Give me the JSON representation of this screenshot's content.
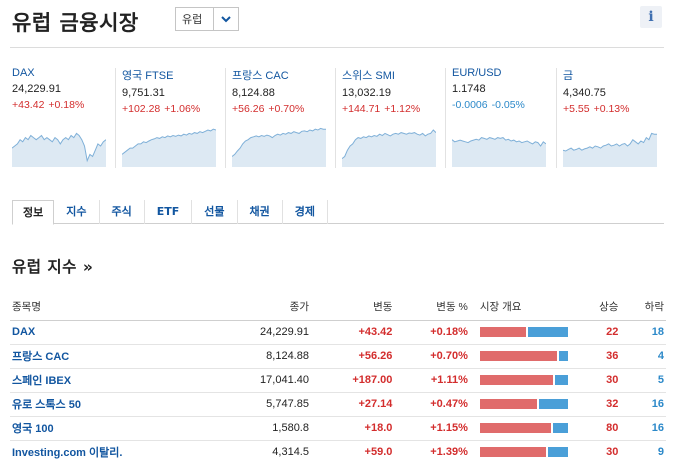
{
  "header": {
    "title": "유럽 금융시장",
    "region_value": "유럽",
    "info_label": "i"
  },
  "quotes": [
    {
      "name": "DAX",
      "value": "24,229.91",
      "change": "+43.42",
      "pct": "+0.18%",
      "direction": "pos"
    },
    {
      "name": "영국 FTSE",
      "value": "9,751.31",
      "change": "+102.28",
      "pct": "+1.06%",
      "direction": "pos"
    },
    {
      "name": "프랑스 CAC",
      "value": "8,124.88",
      "change": "+56.26",
      "pct": "+0.70%",
      "direction": "pos"
    },
    {
      "name": "스위스 SMI",
      "value": "13,032.19",
      "change": "+144.71",
      "pct": "+1.12%",
      "direction": "pos"
    },
    {
      "name": "EUR/USD",
      "value": "1.1748",
      "change": "-0.0006",
      "pct": "-0.05%",
      "direction": "neg"
    },
    {
      "name": "금",
      "value": "4,340.75",
      "change": "+5.55",
      "pct": "+0.13%",
      "direction": "pos"
    }
  ],
  "tabs": [
    {
      "label": "정보",
      "active": true
    },
    {
      "label": "지수"
    },
    {
      "label": "주식"
    },
    {
      "label": "ETF"
    },
    {
      "label": "선물"
    },
    {
      "label": "채권"
    },
    {
      "label": "경제"
    }
  ],
  "section": {
    "title": "유럽 지수 »"
  },
  "table": {
    "headers": {
      "name": "종목명",
      "last": "종가",
      "change": "변동",
      "pct": "변동 %",
      "overview": "시장 개요",
      "up": "상승",
      "down": "하락"
    },
    "rows": [
      {
        "name": "DAX",
        "last": "24,229.91",
        "change": "+43.42",
        "pct": "+0.18%",
        "up": "22",
        "down": "18"
      },
      {
        "name": "프랑스 CAC",
        "last": "8,124.88",
        "change": "+56.26",
        "pct": "+0.70%",
        "up": "36",
        "down": "4"
      },
      {
        "name": "스페인 IBEX",
        "last": "17,041.40",
        "change": "+187.00",
        "pct": "+1.11%",
        "up": "30",
        "down": "5"
      },
      {
        "name": "유로 스톡스 50",
        "last": "5,747.85",
        "change": "+27.14",
        "pct": "+0.47%",
        "up": "32",
        "down": "16"
      },
      {
        "name": "영국 100",
        "last": "1,580.8",
        "change": "+18.0",
        "pct": "+1.15%",
        "up": "80",
        "down": "16"
      },
      {
        "name": "Investing.com 이탈리.",
        "last": "4,314.5",
        "change": "+59.0",
        "pct": "+1.39%",
        "up": "30",
        "down": "9"
      }
    ]
  },
  "colors": {
    "positive": "#d32d2d",
    "negative": "#2c89c9",
    "link": "#1256a0",
    "bar_up": "#e06b6b",
    "bar_down": "#4a9fd8",
    "spark_fill": "#dde9f3",
    "spark_line": "#7fb0d8"
  }
}
